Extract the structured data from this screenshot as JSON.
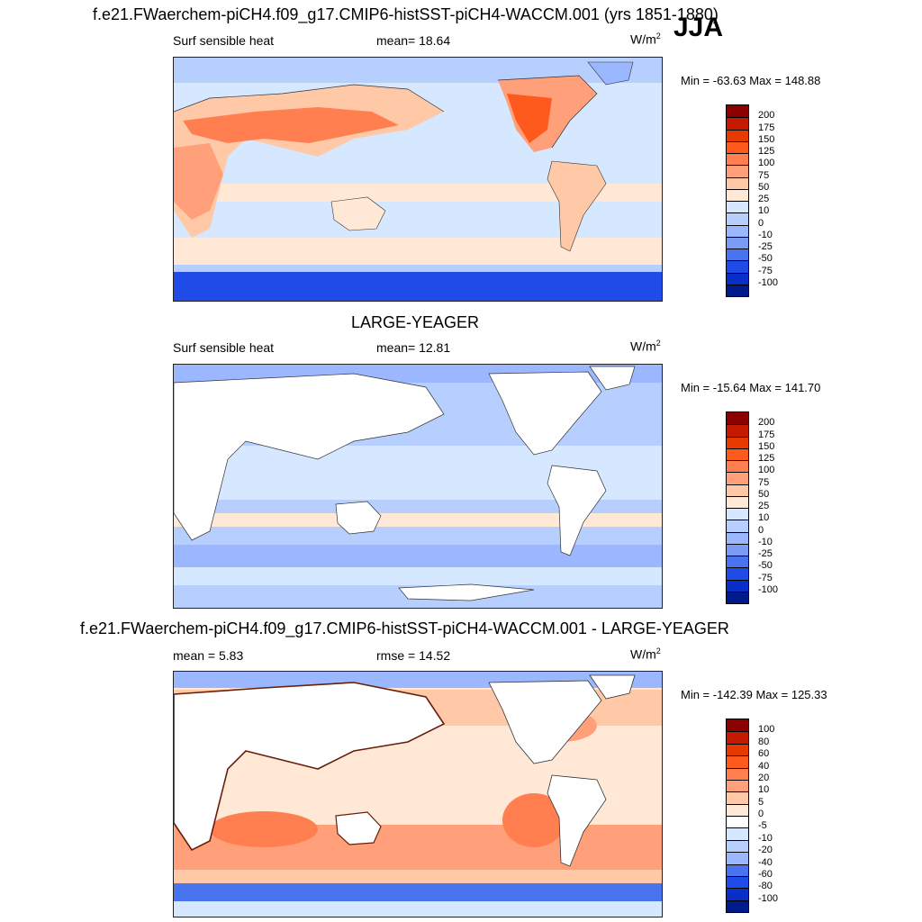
{
  "figure": {
    "season": "JJA",
    "units_base": "W/m",
    "units_exp": "2"
  },
  "panels": [
    {
      "title": "f.e21.FWaerchem-piCH4.f09_g17.CMIP6-histSST-piCH4-WACCM.001 (yrs 1851-1880)",
      "left_label": "Surf sensible heat",
      "mid_label": "mean=  18.64",
      "minmax": "Min = -63.63 Max = 148.88",
      "colorbar_ticks": [
        "200",
        "175",
        "150",
        "125",
        "100",
        "75",
        "50",
        "25",
        "10",
        "0",
        "-10",
        "-25",
        "-50",
        "-75",
        "-100"
      ],
      "colorbar_colors": [
        "#8b0000",
        "#c41a00",
        "#e63a00",
        "#ff5a1e",
        "#ff7f50",
        "#ffa07a",
        "#ffc9a8",
        "#ffe8d6",
        "#d6e8ff",
        "#b7cfff",
        "#9ab7ff",
        "#7a9cf5",
        "#4a73f0",
        "#1f4be6",
        "#0a2fc8",
        "#001a8c"
      ]
    },
    {
      "title": "LARGE-YEAGER",
      "left_label": "Surf sensible heat",
      "mid_label": "mean=  12.81",
      "minmax": "Min = -15.64 Max = 141.70",
      "colorbar_ticks": [
        "200",
        "175",
        "150",
        "125",
        "100",
        "75",
        "50",
        "25",
        "10",
        "0",
        "-10",
        "-25",
        "-50",
        "-75",
        "-100"
      ],
      "colorbar_colors": [
        "#8b0000",
        "#c41a00",
        "#e63a00",
        "#ff5a1e",
        "#ff7f50",
        "#ffa07a",
        "#ffc9a8",
        "#ffe8d6",
        "#d6e8ff",
        "#b7cfff",
        "#9ab7ff",
        "#7a9cf5",
        "#4a73f0",
        "#1f4be6",
        "#0a2fc8",
        "#001a8c"
      ]
    },
    {
      "title": "f.e21.FWaerchem-piCH4.f09_g17.CMIP6-histSST-piCH4-WACCM.001 - LARGE-YEAGER",
      "left_label": "mean =   5.83",
      "mid_label": "rmse =  14.52",
      "minmax": "Min = -142.39 Max = 125.33",
      "colorbar_ticks": [
        "100",
        "80",
        "60",
        "40",
        "20",
        "10",
        "5",
        "0",
        "-5",
        "-10",
        "-20",
        "-40",
        "-60",
        "-80",
        "-100"
      ],
      "colorbar_colors": [
        "#8b0000",
        "#c41a00",
        "#e63a00",
        "#ff5a1e",
        "#ff7f50",
        "#ffa07a",
        "#ffc9a8",
        "#ffe8d6",
        "#ffffff",
        "#d6e8ff",
        "#b7cfff",
        "#9ab7ff",
        "#4a73f0",
        "#1f4be6",
        "#0a2fc8",
        "#001a8c"
      ]
    }
  ]
}
